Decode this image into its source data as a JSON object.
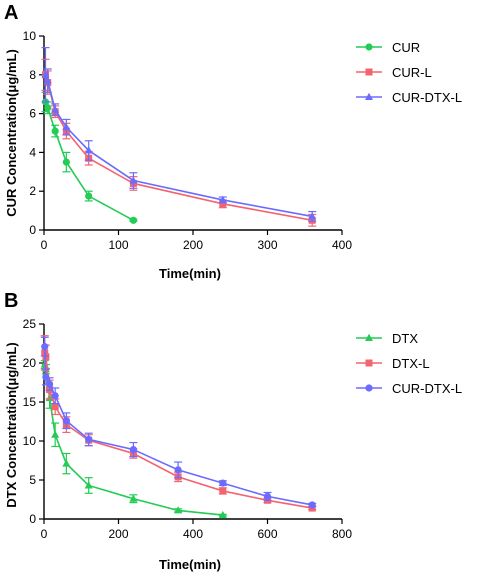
{
  "chart_data": [
    {
      "type": "line",
      "panel_label": "A",
      "xlabel": "Time(min)",
      "ylabel": "CUR Concentration(μg/mL)",
      "xlim": [
        0,
        400
      ],
      "ylim": [
        0,
        10
      ],
      "xticks": [
        0,
        100,
        200,
        300,
        400
      ],
      "yticks": [
        0,
        2,
        4,
        6,
        8,
        10
      ],
      "legend_position": "right",
      "series": [
        {
          "name": "CUR",
          "color": "#22cc55",
          "marker": "circle",
          "x": [
            2,
            5,
            15,
            30,
            60,
            120
          ],
          "y": [
            6.6,
            6.3,
            5.1,
            3.5,
            1.75,
            0.5
          ],
          "err": [
            0.5,
            0.3,
            0.3,
            0.5,
            0.25,
            0.05
          ]
        },
        {
          "name": "CUR-L",
          "color": "#f26470",
          "marker": "square",
          "x": [
            2,
            5,
            15,
            30,
            60,
            120,
            240,
            360
          ],
          "y": [
            8.0,
            7.6,
            6.1,
            5.1,
            3.7,
            2.4,
            1.35,
            0.5
          ],
          "err": [
            0.8,
            0.6,
            0.3,
            0.4,
            0.35,
            0.35,
            0.2,
            0.3
          ]
        },
        {
          "name": "CUR-DTX-L",
          "color": "#6b6bff",
          "marker": "triangle",
          "x": [
            2,
            5,
            15,
            30,
            60,
            120,
            240,
            360
          ],
          "y": [
            8.0,
            7.7,
            6.2,
            5.3,
            4.1,
            2.55,
            1.55,
            0.7
          ],
          "err": [
            1.4,
            0.6,
            0.3,
            0.4,
            0.5,
            0.4,
            0.15,
            0.25
          ]
        }
      ]
    },
    {
      "type": "line",
      "panel_label": "B",
      "xlabel": "Time(min)",
      "ylabel": "DTX Concentration(μg/mL)",
      "xlim": [
        0,
        800
      ],
      "ylim": [
        0,
        25
      ],
      "xticks": [
        0,
        200,
        400,
        600,
        800
      ],
      "yticks": [
        0,
        5,
        10,
        15,
        20,
        25
      ],
      "legend_position": "right",
      "series": [
        {
          "name": "DTX",
          "color": "#22cc55",
          "marker": "triangle",
          "x": [
            2,
            5,
            15,
            30,
            60,
            120,
            240,
            360,
            480
          ],
          "y": [
            19.8,
            19.2,
            15.5,
            10.8,
            7.1,
            4.3,
            2.6,
            1.1,
            0.5
          ],
          "err": [
            0.5,
            0.6,
            1.3,
            1.5,
            1.3,
            1.0,
            0.5,
            0.2,
            0.1
          ]
        },
        {
          "name": "DTX-L",
          "color": "#f26470",
          "marker": "square",
          "x": [
            2,
            5,
            15,
            30,
            60,
            120,
            240,
            360,
            480,
            600,
            720
          ],
          "y": [
            21.3,
            20.8,
            16.6,
            14.4,
            12.1,
            10.1,
            8.4,
            5.4,
            3.6,
            2.4,
            1.4
          ],
          "err": [
            2.2,
            1.5,
            1.2,
            1.0,
            1.0,
            0.7,
            0.6,
            0.6,
            0.4,
            0.3,
            0.2
          ]
        },
        {
          "name": "CUR-DTX-L",
          "color": "#6b6bff",
          "marker": "circle",
          "x": [
            2,
            5,
            15,
            30,
            60,
            120,
            240,
            360,
            480,
            600,
            720
          ],
          "y": [
            22.1,
            18.2,
            17.3,
            15.8,
            12.6,
            10.2,
            8.9,
            6.3,
            4.6,
            2.9,
            1.8
          ],
          "err": [
            1.2,
            1.0,
            0.8,
            1.0,
            1.0,
            0.8,
            0.9,
            1.0,
            0.3,
            0.5,
            0.2
          ]
        }
      ]
    }
  ]
}
